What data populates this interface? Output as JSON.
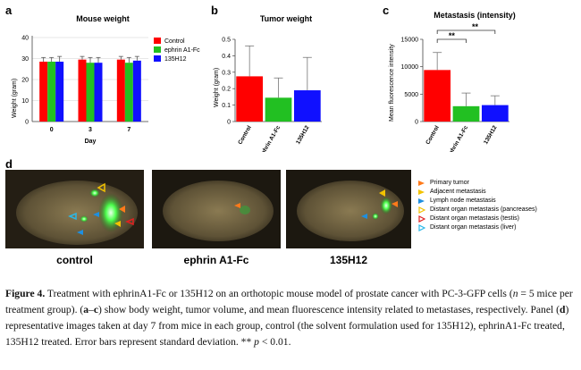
{
  "panels": {
    "a": "a",
    "b": "b",
    "c": "c",
    "d": "d"
  },
  "chart_data": [
    {
      "type": "bar",
      "title": "Mouse weight",
      "xlabel": "Day",
      "ylabel": "Weight (gram)",
      "categories": [
        "0",
        "3",
        "7"
      ],
      "ylim": [
        0,
        40
      ],
      "yticks": [
        "0",
        "10",
        "20",
        "30",
        "40"
      ],
      "series": [
        {
          "name": "Control",
          "color": "#ff0000",
          "values": [
            28.5,
            29.5,
            29.5
          ],
          "errors": [
            2,
            1.5,
            1.5
          ]
        },
        {
          "name": "ephrin A1-Fc",
          "color": "#22c022",
          "values": [
            28.5,
            28,
            28
          ],
          "errors": [
            2,
            2.5,
            2.5
          ]
        },
        {
          "name": "135H12",
          "color": "#1010ff",
          "values": [
            28.5,
            28,
            29
          ],
          "errors": [
            2.5,
            2.5,
            2
          ]
        }
      ],
      "legend_placement": "top-right",
      "grid": true
    },
    {
      "type": "bar",
      "title": "Tumor weight",
      "ylabel": "Weight (gram)",
      "categories": [
        "Control",
        "ephrin A1-Fc",
        "135H12"
      ],
      "ylim": [
        0,
        0.5
      ],
      "yticks": [
        "0",
        "0.1",
        "0.2",
        "0.3",
        "0.4",
        "0.5"
      ],
      "values": [
        0.275,
        0.145,
        0.19
      ],
      "errors": [
        0.185,
        0.12,
        0.2
      ],
      "colors": [
        "#ff0000",
        "#22c022",
        "#1010ff"
      ]
    },
    {
      "type": "bar",
      "title": "Metastasis (intensity)",
      "ylabel": "Mean fluorescence intensity",
      "categories": [
        "Control",
        "ephrin A1-Fc",
        "135H12"
      ],
      "ylim": [
        0,
        15000
      ],
      "yticks": [
        "0",
        "5000",
        "10000",
        "15000"
      ],
      "values": [
        9400,
        2800,
        3000
      ],
      "errors": [
        3200,
        2400,
        1700
      ],
      "colors": [
        "#ff0000",
        "#22c022",
        "#1010ff"
      ],
      "annotations": [
        "**",
        "**"
      ]
    }
  ],
  "photos": [
    {
      "label": "control"
    },
    {
      "label": "ephrin A1-Fc"
    },
    {
      "label": "135H12"
    }
  ],
  "photo_legend": [
    {
      "text": "Primary tumor",
      "color": "#ff7a1a",
      "outline": false
    },
    {
      "text": "Adjacent metastasis",
      "color": "#f2c200",
      "outline": false
    },
    {
      "text": "Lymph node metastasis",
      "color": "#1e8fe0",
      "outline": false
    },
    {
      "text": "Distant organ metastasis (pancreases)",
      "color": "#f2c200",
      "outline": true
    },
    {
      "text": "Distant organ metastasis (testis)",
      "color": "#e02020",
      "outline": true
    },
    {
      "text": "Distant organ metastasis (liver)",
      "color": "#2ab8e8",
      "outline": true
    }
  ],
  "caption": {
    "label": "Figure 4.",
    "part1": " Treatment with ephrinA1-Fc or 135H12 on an orthotopic mouse model of prostate cancer with PC-3-GFP cells (",
    "n_italic": "n",
    "part2": " = 5 mice per treatment group). (",
    "ac": "a",
    "dash": "–",
    "cc": "c",
    "part3": ") show body weight, tumor volume, and mean fluorescence intensity related to metastases, respectively. Panel (",
    "dd": "d",
    "part4": ") representative images taken at day 7 from mice in each group, control (the solvent formulation used for 135H12), ephrinA1-Fc treated, 135H12 treated. Error bars represent standard deviation. ** ",
    "p_italic": "p",
    "part5": " < 0.01."
  }
}
